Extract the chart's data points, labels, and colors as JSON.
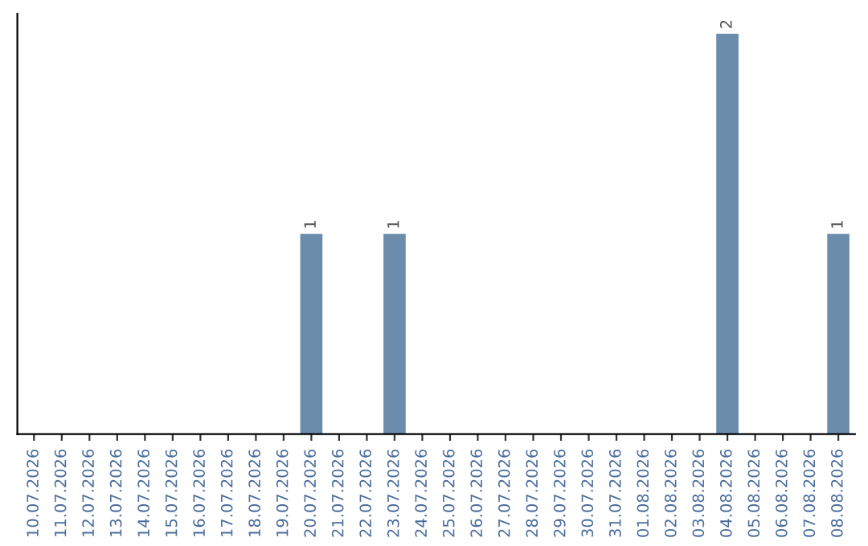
{
  "chart_data": {
    "type": "bar",
    "categories": [
      "10.07.2026",
      "11.07.2026",
      "12.07.2026",
      "13.07.2026",
      "14.07.2026",
      "15.07.2026",
      "16.07.2026",
      "17.07.2026",
      "18.07.2026",
      "19.07.2026",
      "20.07.2026",
      "21.07.2026",
      "22.07.2026",
      "23.07.2026",
      "24.07.2026",
      "25.07.2026",
      "26.07.2026",
      "27.07.2026",
      "28.07.2026",
      "29.07.2026",
      "30.07.2026",
      "31.07.2026",
      "01.08.2026",
      "02.08.2026",
      "03.08.2026",
      "04.08.2026",
      "05.08.2026",
      "06.08.2026",
      "07.08.2026",
      "08.08.2026"
    ],
    "values": [
      0,
      0,
      0,
      0,
      0,
      0,
      0,
      0,
      0,
      0,
      1,
      0,
      0,
      1,
      0,
      0,
      0,
      0,
      0,
      0,
      0,
      0,
      0,
      0,
      0,
      2,
      0,
      0,
      0,
      1
    ],
    "value_labels": [
      null,
      null,
      null,
      null,
      null,
      null,
      null,
      null,
      null,
      null,
      "1",
      null,
      null,
      "1",
      null,
      null,
      null,
      null,
      null,
      null,
      null,
      null,
      null,
      null,
      null,
      "2",
      null,
      null,
      null,
      "1"
    ],
    "color": "#6b8caa",
    "tick_labels": "x",
    "grid": false,
    "legend": false
  }
}
